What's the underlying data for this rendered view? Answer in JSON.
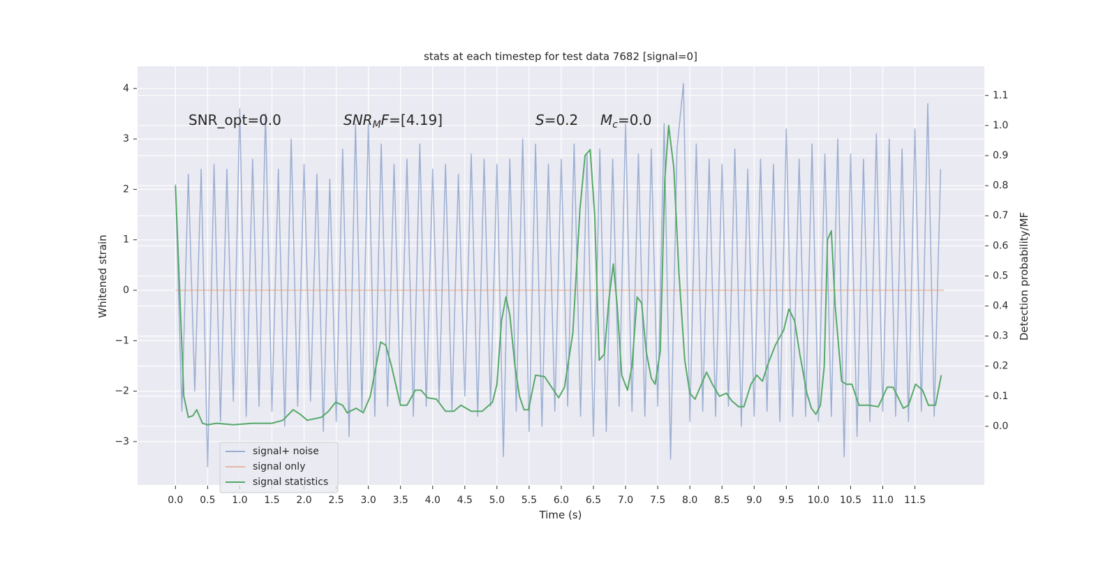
{
  "chart_data": {
    "type": "line",
    "title": "stats at each timestep for test data 7682 [signal=0]",
    "x_label": "Time (s)",
    "y_label": "Whitened strain",
    "y2_label": "Detection probability/MF",
    "xlim": [
      -0.59,
      12.58
    ],
    "ylim": [
      -3.86,
      4.44
    ],
    "y2lim": [
      -0.195,
      1.197
    ],
    "xticks": [
      {
        "value": 0,
        "label": "0.0"
      },
      0.5,
      {
        "value": 1,
        "label": "1.0"
      },
      1.5,
      {
        "value": 2,
        "label": "2.0"
      },
      2.5,
      {
        "value": 3,
        "label": "3.0"
      },
      3.5,
      {
        "value": 4,
        "label": "4.0"
      },
      4.5,
      {
        "value": 5,
        "label": "5.0"
      },
      5.5,
      {
        "value": 6,
        "label": "6.0"
      },
      6.5,
      {
        "value": 7,
        "label": "7.0"
      },
      7.5,
      {
        "value": 8,
        "label": "8.0"
      },
      8.5,
      {
        "value": 9,
        "label": "9.0"
      },
      9.5,
      {
        "value": 10,
        "label": "10.0"
      },
      10.5,
      {
        "value": 11,
        "label": "11.0"
      },
      11.5
    ],
    "yticks": [
      {
        "value": -3,
        "label": "−3"
      },
      {
        "value": -2,
        "label": "−2"
      },
      {
        "value": -1,
        "label": "−1"
      },
      0,
      1,
      2,
      3,
      4
    ],
    "y2ticks": [
      {
        "value": 0,
        "label": "0.0"
      },
      0.1,
      0.2,
      0.3,
      0.4,
      0.5,
      0.6,
      0.7,
      0.8,
      0.9,
      {
        "value": 1,
        "label": "1.0"
      },
      1.1
    ],
    "grid": true,
    "background": "#eaeaf2",
    "annotations": [
      [
        {
          "text": "SNR_opt=0.0"
        }
      ],
      [
        {
          "text": "SNR",
          "style": "italic"
        },
        {
          "text": "M",
          "style": "subscript"
        },
        {
          "text": "F",
          "style": "italic"
        },
        {
          "text": "=[4.19]"
        }
      ],
      [
        {
          "text": "S",
          "style": "italic"
        },
        {
          "text": "=0.2"
        }
      ],
      [
        {
          "text": "M",
          "style": "italic"
        },
        {
          "text": "c",
          "style": "subscript"
        },
        {
          "text": "=0.0"
        }
      ]
    ],
    "series": [
      {
        "name": "signal+ noise",
        "color": "#4c72b0",
        "opacity": 0.5,
        "x": [
          0.0,
          0.1,
          0.2,
          0.3,
          0.4,
          0.5,
          0.6,
          0.7,
          0.8,
          0.9,
          1.0,
          1.1,
          1.2,
          1.3,
          1.4,
          1.5,
          1.6,
          1.7,
          1.8,
          1.9,
          2.0,
          2.1,
          2.2,
          2.3,
          2.4,
          2.5,
          2.6,
          2.7,
          2.8,
          2.9,
          3.0,
          3.1,
          3.2,
          3.3,
          3.4,
          3.5,
          3.6,
          3.7,
          3.8,
          3.9,
          4.0,
          4.1,
          4.2,
          4.3,
          4.4,
          4.5,
          4.6,
          4.7,
          4.8,
          4.9,
          5.0,
          5.1,
          5.2,
          5.3,
          5.4,
          5.5,
          5.6,
          5.7,
          5.8,
          5.9,
          6.0,
          6.1,
          6.2,
          6.3,
          6.4,
          6.5,
          6.6,
          6.7,
          6.8,
          6.9,
          7.0,
          7.1,
          7.2,
          7.3,
          7.4,
          7.5,
          7.6,
          7.7,
          7.8,
          7.9,
          8.0,
          8.1,
          8.2,
          8.3,
          8.4,
          8.5,
          8.6,
          8.7,
          8.8,
          8.9,
          9.0,
          9.1,
          9.2,
          9.3,
          9.4,
          9.5,
          9.6,
          9.7,
          9.8,
          9.9,
          10.0,
          10.1,
          10.2,
          10.3,
          10.4,
          10.5,
          10.6,
          10.7,
          10.8,
          10.9,
          11.0,
          11.1,
          11.2,
          11.3,
          11.4,
          11.5,
          11.6,
          11.7,
          11.8,
          11.9
        ],
        "values": [
          2.1,
          -2.4,
          2.3,
          -2.0,
          2.4,
          -3.5,
          2.5,
          -2.6,
          2.4,
          -2.2,
          3.6,
          -2.5,
          2.6,
          -2.3,
          3.5,
          -2.4,
          2.4,
          -2.7,
          3.0,
          -2.3,
          2.5,
          -2.2,
          2.3,
          -2.8,
          2.2,
          -2.6,
          2.8,
          -2.9,
          3.3,
          -2.4,
          3.3,
          -2.5,
          2.9,
          -2.3,
          2.5,
          -2.2,
          2.6,
          -2.5,
          2.9,
          -2.3,
          2.4,
          -2.2,
          2.5,
          -2.4,
          2.3,
          -2.1,
          2.7,
          -2.5,
          2.6,
          -2.3,
          2.5,
          -3.3,
          2.6,
          -2.4,
          3.0,
          -2.8,
          2.9,
          -2.7,
          2.5,
          -2.4,
          2.6,
          -2.3,
          2.9,
          -2.5,
          2.7,
          -2.9,
          2.8,
          -2.8,
          2.6,
          -2.3,
          3.3,
          -2.4,
          2.7,
          -2.5,
          2.8,
          -2.3,
          3.3,
          -3.35,
          2.8,
          4.1,
          -2.6,
          2.9,
          -2.4,
          2.6,
          -2.5,
          2.5,
          -2.3,
          2.8,
          -2.7,
          2.4,
          -2.5,
          2.6,
          -2.4,
          2.5,
          -2.6,
          3.2,
          -2.5,
          2.6,
          -2.5,
          2.9,
          -2.6,
          2.7,
          -2.5,
          3.0,
          -3.3,
          2.7,
          -2.9,
          2.6,
          -2.6,
          3.1,
          -2.4,
          3.0,
          -2.5,
          2.8,
          -2.6,
          3.2,
          -2.4,
          3.7,
          -2.5,
          2.4
        ]
      },
      {
        "name": "signal only",
        "color": "#dd8452",
        "opacity": 0.5,
        "x": [
          0.0,
          11.95
        ],
        "values": [
          0,
          0
        ]
      },
      {
        "name": "signal statistics",
        "color": "#55a868",
        "axis": "y2",
        "x": [
          0.0,
          0.13,
          0.2,
          0.27,
          0.33,
          0.42,
          0.5,
          0.64,
          0.9,
          1.2,
          1.5,
          1.67,
          1.83,
          1.94,
          2.05,
          2.27,
          2.38,
          2.49,
          2.6,
          2.67,
          2.81,
          2.92,
          3.03,
          3.19,
          3.27,
          3.36,
          3.5,
          3.6,
          3.73,
          3.82,
          3.92,
          4.06,
          4.2,
          4.33,
          4.44,
          4.6,
          4.77,
          4.93,
          5.0,
          5.07,
          5.14,
          5.2,
          5.28,
          5.35,
          5.42,
          5.49,
          5.6,
          5.74,
          5.85,
          5.96,
          6.05,
          6.18,
          6.29,
          6.37,
          6.45,
          6.52,
          6.59,
          6.67,
          6.74,
          6.81,
          6.87,
          6.94,
          7.03,
          7.1,
          7.18,
          7.25,
          7.32,
          7.4,
          7.46,
          7.54,
          7.61,
          7.67,
          7.75,
          7.83,
          7.92,
          8.0,
          8.08,
          8.18,
          8.26,
          8.35,
          8.46,
          8.57,
          8.65,
          8.76,
          8.84,
          8.95,
          9.04,
          9.13,
          9.22,
          9.33,
          9.46,
          9.54,
          9.63,
          9.71,
          9.82,
          9.89,
          9.96,
          10.03,
          10.09,
          10.14,
          10.2,
          10.26,
          10.36,
          10.43,
          10.52,
          10.63,
          10.79,
          10.93,
          11.07,
          11.16,
          11.23,
          11.32,
          11.4,
          11.51,
          11.62,
          11.71,
          11.82,
          11.91
        ],
        "values": [
          0.8,
          0.1,
          0.03,
          0.035,
          0.055,
          0.01,
          0.005,
          0.01,
          0.005,
          0.01,
          0.01,
          0.02,
          0.055,
          0.04,
          0.02,
          0.03,
          0.05,
          0.08,
          0.07,
          0.045,
          0.06,
          0.045,
          0.1,
          0.28,
          0.27,
          0.2,
          0.07,
          0.07,
          0.12,
          0.12,
          0.095,
          0.09,
          0.05,
          0.05,
          0.07,
          0.05,
          0.05,
          0.08,
          0.14,
          0.35,
          0.43,
          0.37,
          0.2,
          0.1,
          0.055,
          0.055,
          0.17,
          0.165,
          0.13,
          0.095,
          0.13,
          0.31,
          0.72,
          0.9,
          0.92,
          0.7,
          0.22,
          0.24,
          0.42,
          0.54,
          0.4,
          0.17,
          0.12,
          0.2,
          0.43,
          0.41,
          0.25,
          0.16,
          0.14,
          0.25,
          0.82,
          1.0,
          0.86,
          0.51,
          0.22,
          0.11,
          0.09,
          0.14,
          0.18,
          0.14,
          0.1,
          0.11,
          0.085,
          0.065,
          0.065,
          0.14,
          0.17,
          0.15,
          0.21,
          0.27,
          0.32,
          0.39,
          0.35,
          0.24,
          0.11,
          0.06,
          0.04,
          0.07,
          0.2,
          0.62,
          0.65,
          0.4,
          0.15,
          0.14,
          0.14,
          0.07,
          0.07,
          0.065,
          0.13,
          0.13,
          0.1,
          0.06,
          0.07,
          0.14,
          0.12,
          0.07,
          0.07,
          0.17
        ]
      }
    ]
  }
}
